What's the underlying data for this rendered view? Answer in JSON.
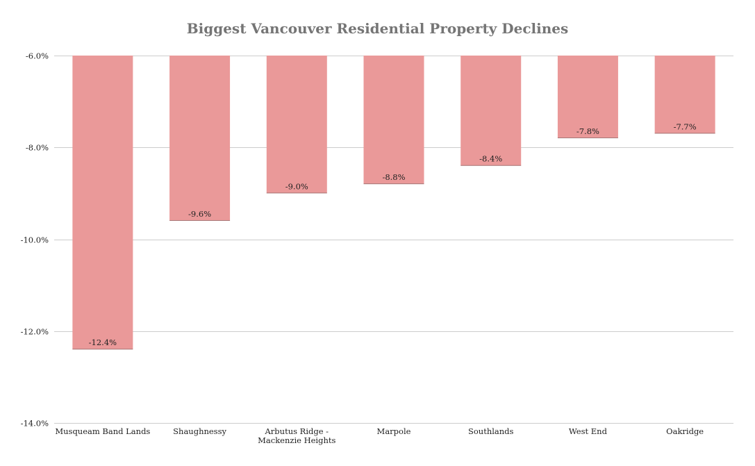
{
  "chart_data": {
    "type": "bar",
    "title": "Biggest Vancouver Residential Property Declines",
    "xlabel": "",
    "ylabel": "",
    "categories": [
      [
        "Musqueam Band Lands"
      ],
      [
        "Shaughnessy"
      ],
      [
        "Arbutus Ridge -",
        "Mackenzie Heights"
      ],
      [
        "Marpole"
      ],
      [
        "Southlands"
      ],
      [
        "West End"
      ],
      [
        "Oakridge"
      ]
    ],
    "values": [
      -12.4,
      -9.6,
      -9.0,
      -8.8,
      -8.4,
      -7.8,
      -7.7
    ],
    "value_labels": [
      "-12.4%",
      "-9.6%",
      "-9.0%",
      "-8.8%",
      "-8.4%",
      "-7.8%",
      "-7.7%"
    ],
    "ylim": [
      -14.0,
      -6.0
    ],
    "yticks": [
      -6.0,
      -8.0,
      -10.0,
      -12.0,
      -14.0
    ],
    "ytick_labels": [
      "-6.0%",
      "-8.0%",
      "-10.0%",
      "-12.0%",
      "-14.0%"
    ],
    "grid": true,
    "bar_color": "#ea9999",
    "grid_color": "#cccccc"
  }
}
